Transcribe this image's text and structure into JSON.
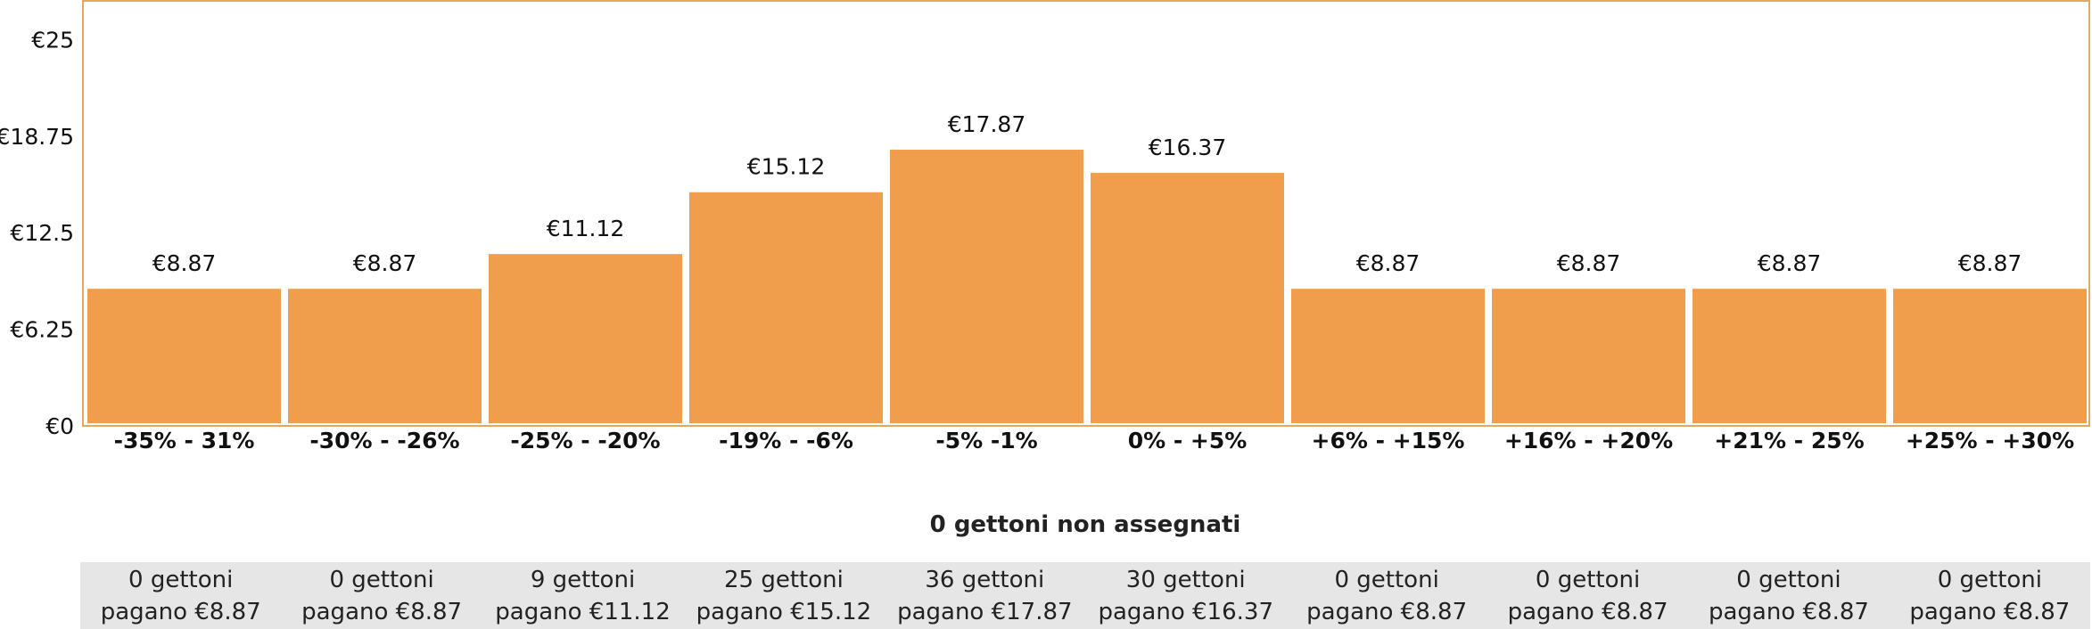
{
  "colors": {
    "bar": "#F09E4B",
    "frame": "#E8A85C",
    "text": "#111111",
    "table_bg": "#E6E6E6"
  },
  "chart_data": {
    "type": "bar",
    "categories": [
      "-35% - 31%",
      "-30% - -26%",
      "-25% - -20%",
      "-19% - -6%",
      "-5% -1%",
      "0% - +5%",
      "+6% - +15%",
      "+16% - +20%",
      "+21% - 25%",
      "+25% - +30%"
    ],
    "values": [
      8.87,
      8.87,
      11.12,
      15.12,
      17.87,
      16.37,
      8.87,
      8.87,
      8.87,
      8.87
    ],
    "value_labels": [
      "€8.87",
      "€8.87",
      "€11.12",
      "€15.12",
      "€17.87",
      "€16.37",
      "€8.87",
      "€8.87",
      "€8.87",
      "€8.87"
    ],
    "yticks": [
      0,
      6.25,
      12.5,
      18.75,
      25
    ],
    "ytick_labels": [
      "€0",
      "€6.25",
      "€12.5",
      "€18.75",
      "€25"
    ],
    "ylim": [
      0,
      27.5
    ],
    "title": "",
    "xlabel": "",
    "ylabel": "",
    "grid": false,
    "legend": "none"
  },
  "unassigned_label": "0 gettoni non assegnati",
  "token_rows": [
    {
      "count": "0 gettoni",
      "pay": "pagano €8.87"
    },
    {
      "count": "0 gettoni",
      "pay": "pagano €8.87"
    },
    {
      "count": "9 gettoni",
      "pay": "pagano €11.12"
    },
    {
      "count": "25 gettoni",
      "pay": "pagano €15.12"
    },
    {
      "count": "36 gettoni",
      "pay": "pagano €17.87"
    },
    {
      "count": "30 gettoni",
      "pay": "pagano €16.37"
    },
    {
      "count": "0 gettoni",
      "pay": "pagano €8.87"
    },
    {
      "count": "0 gettoni",
      "pay": "pagano €8.87"
    },
    {
      "count": "0 gettoni",
      "pay": "pagano €8.87"
    },
    {
      "count": "0 gettoni",
      "pay": "pagano €8.87"
    }
  ]
}
